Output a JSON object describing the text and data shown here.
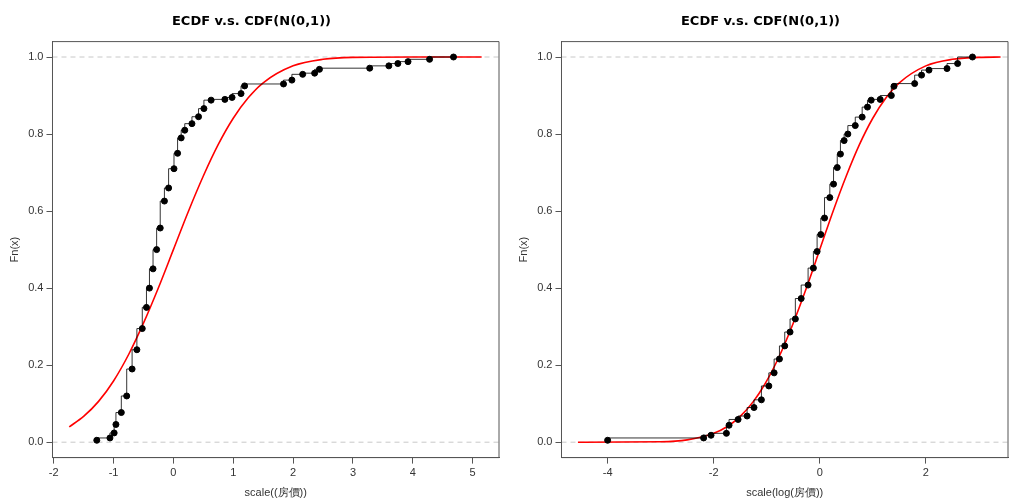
{
  "chart_data": [
    {
      "type": "step",
      "title": "ECDF v.s. CDF(N(0,1))",
      "xlabel": "scale((房價))",
      "ylabel": "Fn(x)",
      "grid": false,
      "xlim": [
        -2.02,
        5.44
      ],
      "xticks": [
        -2,
        -1,
        0,
        1,
        2,
        3,
        4,
        5
      ],
      "ylim": [
        -0.04,
        1.04
      ],
      "yticks": [
        {
          "value": 0,
          "label": "0.0"
        },
        {
          "value": 0.2,
          "label": "0.2"
        },
        {
          "value": 0.4,
          "label": "0.4"
        },
        {
          "value": 0.6,
          "label": "0.6"
        },
        {
          "value": 0.8,
          "label": "0.8"
        },
        {
          "value": 1,
          "label": "1.0"
        }
      ],
      "ref_lines": [
        {
          "axis": "y",
          "value": 0,
          "color": "#c8c8c8",
          "line_style": "dashed"
        },
        {
          "axis": "y",
          "value": 1,
          "color": "#c8c8c8",
          "line_style": "dashed"
        }
      ],
      "series": [
        {
          "color": "#000000",
          "marker": "circle",
          "x": [
            -1.28,
            -1.06,
            -0.99,
            -0.96,
            -0.87,
            -0.78,
            -0.69,
            -0.61,
            -0.52,
            -0.45,
            -0.4,
            -0.34,
            -0.28,
            -0.22,
            -0.15,
            -0.08,
            0.01,
            0.07,
            0.13,
            0.19,
            0.31,
            0.42,
            0.51,
            0.63,
            0.86,
            0.98,
            1.13,
            1.19,
            1.84,
            1.98,
            2.16,
            2.36,
            2.44,
            3.28,
            3.6,
            3.75,
            3.92,
            4.28,
            4.68
          ],
          "values": [
            0.005,
            0.011,
            0.024,
            0.046,
            0.077,
            0.12,
            0.19,
            0.24,
            0.295,
            0.35,
            0.4,
            0.45,
            0.5,
            0.556,
            0.626,
            0.66,
            0.71,
            0.75,
            0.79,
            0.81,
            0.827,
            0.845,
            0.866,
            0.888,
            0.89,
            0.895,
            0.905,
            0.925,
            0.93,
            0.94,
            0.955,
            0.958,
            0.968,
            0.971,
            0.977,
            0.983,
            0.988,
            0.994,
            1.0
          ]
        },
        {
          "type": "line",
          "color": "#ff0000",
          "marker": "none",
          "x": [
            -1.74,
            -1.5,
            -1.25,
            -1,
            -0.75,
            -0.5,
            -0.25,
            0,
            0.25,
            0.5,
            0.75,
            1,
            1.25,
            1.5,
            2,
            2.5,
            3,
            4,
            5.15
          ],
          "values": [
            0.04,
            0.067,
            0.106,
            0.159,
            0.227,
            0.309,
            0.401,
            0.5,
            0.599,
            0.691,
            0.773,
            0.841,
            0.894,
            0.933,
            0.977,
            0.994,
            0.999,
            1.0,
            1.0
          ]
        }
      ]
    },
    {
      "type": "step",
      "title": "ECDF v.s. CDF(N(0,1))",
      "xlabel": "scale(log(房價))",
      "ylabel": "Fn(x)",
      "grid": false,
      "xlim": [
        -4.87,
        3.55
      ],
      "xticks": [
        -4,
        -2,
        0,
        2
      ],
      "ylim": [
        -0.04,
        1.04
      ],
      "yticks": [
        {
          "value": 0,
          "label": "0.0"
        },
        {
          "value": 0.2,
          "label": "0.2"
        },
        {
          "value": 0.4,
          "label": "0.4"
        },
        {
          "value": 0.6,
          "label": "0.6"
        },
        {
          "value": 0.8,
          "label": "0.8"
        },
        {
          "value": 1,
          "label": "1.0"
        }
      ],
      "ref_lines": [
        {
          "axis": "y",
          "value": 0,
          "color": "#c8c8c8",
          "line_style": "dashed"
        },
        {
          "axis": "y",
          "value": 1,
          "color": "#c8c8c8",
          "line_style": "dashed"
        }
      ],
      "series": [
        {
          "color": "#000000",
          "marker": "circle",
          "x": [
            -4.0,
            -2.19,
            -2.05,
            -1.76,
            -1.71,
            -1.54,
            -1.37,
            -1.24,
            -1.1,
            -0.96,
            -0.86,
            -0.76,
            -0.66,
            -0.56,
            -0.46,
            -0.35,
            -0.22,
            -0.12,
            -0.05,
            0.02,
            0.09,
            0.19,
            0.26,
            0.33,
            0.39,
            0.46,
            0.53,
            0.67,
            0.8,
            0.9,
            0.97,
            1.14,
            1.35,
            1.4,
            1.79,
            1.92,
            2.06,
            2.4,
            2.6,
            2.88
          ],
          "values": [
            0.005,
            0.011,
            0.018,
            0.023,
            0.044,
            0.059,
            0.068,
            0.09,
            0.11,
            0.146,
            0.18,
            0.216,
            0.25,
            0.286,
            0.32,
            0.373,
            0.408,
            0.452,
            0.495,
            0.539,
            0.582,
            0.635,
            0.67,
            0.713,
            0.748,
            0.783,
            0.8,
            0.822,
            0.844,
            0.87,
            0.888,
            0.89,
            0.9,
            0.924,
            0.931,
            0.953,
            0.966,
            0.97,
            0.983,
            1.0
          ]
        },
        {
          "type": "line",
          "color": "#ff0000",
          "marker": "none",
          "x": [
            -4.56,
            -3,
            -2.5,
            -2,
            -1.75,
            -1.5,
            -1.25,
            -1,
            -0.75,
            -0.5,
            -0.25,
            0,
            0.25,
            0.5,
            0.75,
            1,
            1.25,
            1.5,
            2,
            2.5,
            3,
            3.41
          ],
          "values": [
            0.0,
            0.001,
            0.006,
            0.023,
            0.04,
            0.067,
            0.106,
            0.159,
            0.227,
            0.309,
            0.401,
            0.5,
            0.599,
            0.691,
            0.773,
            0.841,
            0.894,
            0.933,
            0.977,
            0.994,
            0.999,
            1.0
          ]
        }
      ]
    }
  ]
}
